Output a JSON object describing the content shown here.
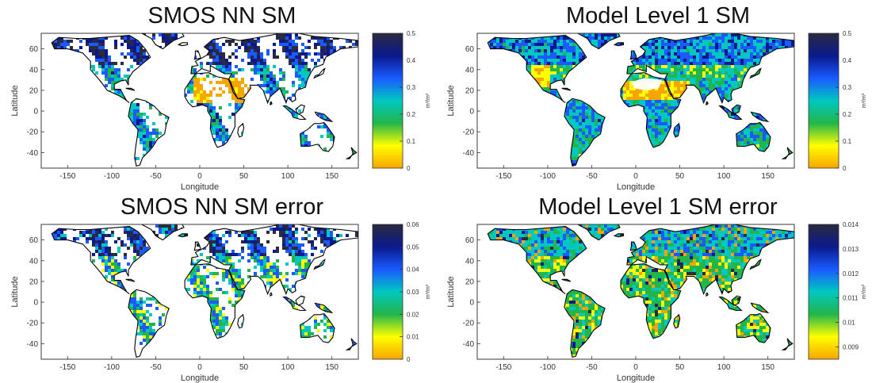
{
  "colors": {
    "colormap": [
      "#f7a500",
      "#ffff00",
      "#22b64a",
      "#00c8c0",
      "#1a5aff",
      "#0a1a8c",
      "#2a2a40"
    ],
    "coastline": "#000000",
    "background": "#ffffff"
  },
  "map": {
    "xlabel": "Longitude",
    "ylabel": "Latitude",
    "x_ticks": [
      -150,
      -100,
      -50,
      0,
      50,
      100,
      150
    ],
    "y_ticks": [
      60,
      40,
      20,
      0,
      -20,
      -40
    ],
    "xlim": [
      -180,
      180
    ],
    "ylim": [
      -55,
      75
    ]
  },
  "panels": [
    {
      "title": "SMOS NN SM",
      "colorbar": {
        "min": 0,
        "max": 0.5,
        "ticks": [
          "0.5",
          "0.4",
          "0.3",
          "0.2",
          "0.1",
          "0"
        ],
        "unit": "m³/m³"
      },
      "coverage": "swath"
    },
    {
      "title": "Model Level 1 SM",
      "colorbar": {
        "min": 0,
        "max": 0.5,
        "ticks": [
          "0.5",
          "0.4",
          "0.3",
          "0.2",
          "0.1",
          "0"
        ],
        "unit": "m³/m³"
      },
      "coverage": "full"
    },
    {
      "title": "SMOS NN SM error",
      "colorbar": {
        "min": 0,
        "max": 0.06,
        "ticks": [
          "0.06",
          "0.05",
          "0.04",
          "0.03",
          "0.02",
          "0.01",
          "0"
        ],
        "unit": "m³/m³"
      },
      "coverage": "swath"
    },
    {
      "title": "Model Level 1 SM error",
      "colorbar": {
        "min": 0.0085,
        "max": 0.014,
        "ticks": [
          "0.014",
          "0.013",
          "0.012",
          "0.011",
          "0.01",
          "0.009"
        ],
        "unit": "m³/m³"
      },
      "coverage": "full"
    }
  ]
}
